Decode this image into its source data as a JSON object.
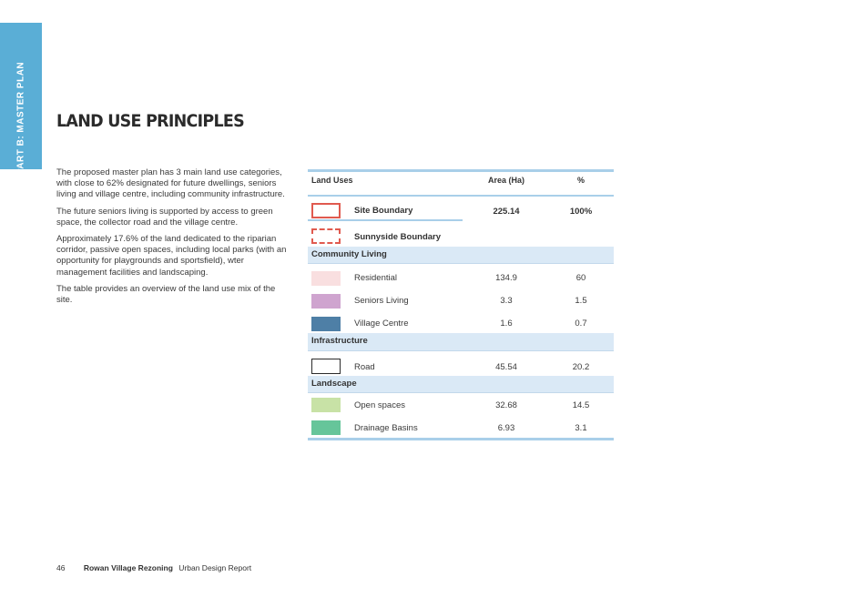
{
  "side_tab": {
    "label": "PART B: MASTER PLAN",
    "color": "#5aaed6"
  },
  "title": "LAND USE PRINCIPLES",
  "intro": [
    "The proposed master plan has 3 main land use categories, with close to 62% designated for future dwellings, seniors living and village centre, including community infrastructure.",
    "The future seniors living is supported by access to green space, the collector road and the village centre.",
    "Approximately 17.6% of the land dedicated to the riparian corridor, passive open spaces, including local parks (with an opportunity for playgrounds and sportsfield), wter management facilities and landscaping.",
    "The table provides an overview of the land use mix of the site."
  ],
  "table": {
    "headers": {
      "land_uses": "Land Uses",
      "area": "Area (Ha)",
      "pct": "%"
    },
    "site_boundary": {
      "label": "Site Boundary",
      "area": "225.14",
      "pct": "100%",
      "swatch": "#e05a4f"
    },
    "sunnyside_boundary": {
      "label": "Sunnyside Boundary",
      "swatch": "#e05a4f"
    },
    "community_living": {
      "heading": "Community Living",
      "rows": [
        {
          "label": "Residential",
          "area": "134.9",
          "pct": "60",
          "swatch": "#f9dfe0"
        },
        {
          "label": "Seniors Living",
          "area": "3.3",
          "pct": "1.5",
          "swatch": "#cfa4cf"
        },
        {
          "label": "Village Centre",
          "area": "1.6",
          "pct": "0.7",
          "swatch": "#4e7fa6"
        }
      ]
    },
    "infrastructure": {
      "heading": "Infrastructure",
      "rows": [
        {
          "label": "Road",
          "area": "45.54",
          "pct": "20.2",
          "swatch": "#ffffff"
        }
      ]
    },
    "landscape": {
      "heading": "Landscape",
      "rows": [
        {
          "label": "Open spaces",
          "area": "32.68",
          "pct": "14.5",
          "swatch": "#c8e2a6"
        },
        {
          "label": "Drainage Basins",
          "area": "6.93",
          "pct": "3.1",
          "swatch": "#66c59a"
        }
      ]
    }
  },
  "footer": {
    "page_number": "46",
    "project": "Rowan Village Rezoning",
    "report": "Urban Design Report"
  }
}
